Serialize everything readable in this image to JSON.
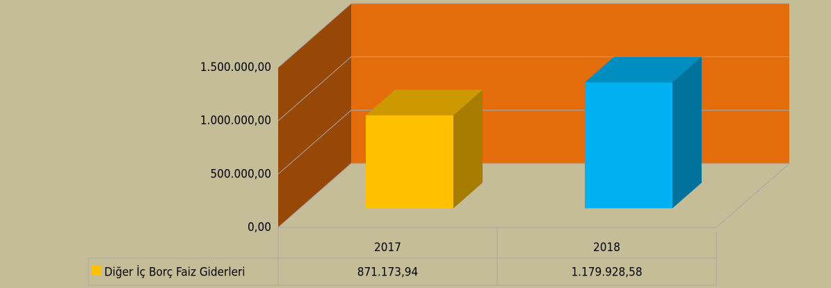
{
  "chart_data": {
    "type": "bar3d",
    "categories": [
      "2017",
      "2018"
    ],
    "series": [
      {
        "name": "Diğer İç Borç Faiz Giderleri",
        "color": "#FFC000",
        "colors": [
          "#FFC000",
          "#00B0F0"
        ],
        "values": [
          871173.94,
          1179928.58
        ],
        "value_labels": [
          "871.173,94",
          "1.179.928,58"
        ]
      }
    ],
    "ylim": [
      0,
      1500000
    ],
    "yticks": [
      {
        "value": 0,
        "label": "0,00"
      },
      {
        "value": 500000,
        "label": "500.000,00"
      },
      {
        "value": 1000000,
        "label": "1.000.000,00"
      },
      {
        "value": 1500000,
        "label": "1.500.000,00"
      }
    ],
    "grid": true,
    "wall_color": "#E46C0A",
    "side_wall_color": "#974706"
  }
}
